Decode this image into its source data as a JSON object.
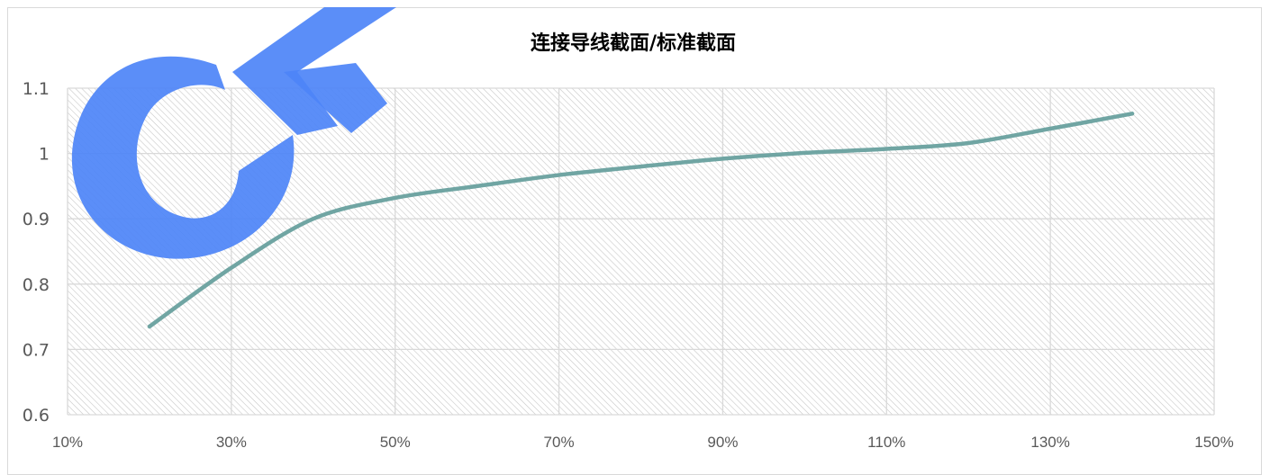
{
  "chart_data": {
    "type": "line",
    "title": "连接导线截面/标准截面",
    "xlabel": "",
    "ylabel": "",
    "x_ticks": [
      "10%",
      "30%",
      "50%",
      "70%",
      "90%",
      "110%",
      "130%",
      "150%"
    ],
    "y_ticks": [
      "0.6",
      "0.7",
      "0.8",
      "0.9",
      "1",
      "1.1"
    ],
    "xlim": [
      10,
      150
    ],
    "ylim": [
      0.6,
      1.1
    ],
    "grid": true,
    "legend": "none",
    "series": [
      {
        "color": "#70a5a3",
        "smooth": true,
        "x": [
          20,
          30,
          40,
          50,
          60,
          70,
          80,
          90,
          100,
          110,
          120,
          130,
          140
        ],
        "y": [
          0.735,
          0.825,
          0.9,
          0.932,
          0.95,
          0.967,
          0.98,
          0.992,
          1.001,
          1.007,
          1.016,
          1.038,
          1.061
        ]
      }
    ]
  },
  "watermark": {
    "text": "GF",
    "color": "#4d84f7"
  }
}
